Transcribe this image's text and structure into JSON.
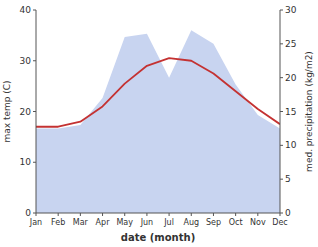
{
  "chart_data": {
    "type": "line",
    "xlabel": "date (month)",
    "ylabel": "max temp (C)",
    "y2label": "med. precipitation (kg/m2)",
    "categories": [
      "Jan",
      "Feb",
      "Mar",
      "Apr",
      "May",
      "Jun",
      "Jul",
      "Aug",
      "Sep",
      "Oct",
      "Nov",
      "Dec"
    ],
    "ylim": [
      0,
      40
    ],
    "yticks": [
      0,
      10,
      20,
      30,
      40
    ],
    "y2lim": [
      0,
      30
    ],
    "y2ticks": [
      0,
      5,
      10,
      15,
      20,
      25,
      30
    ],
    "grid": false,
    "series": [
      {
        "type": "area",
        "axis": "y2",
        "color": "#c8d4f0",
        "values": [
          12.5,
          12.5,
          13.0,
          17.0,
          26.0,
          26.5,
          20.0,
          27.0,
          25.0,
          19.0,
          14.5,
          12.5
        ]
      },
      {
        "type": "line",
        "color": "#c43232",
        "values": [
          17.0,
          17.0,
          18.0,
          21.0,
          25.5,
          29.0,
          30.5,
          30.0,
          27.5,
          24.0,
          20.5,
          17.5
        ]
      }
    ]
  }
}
